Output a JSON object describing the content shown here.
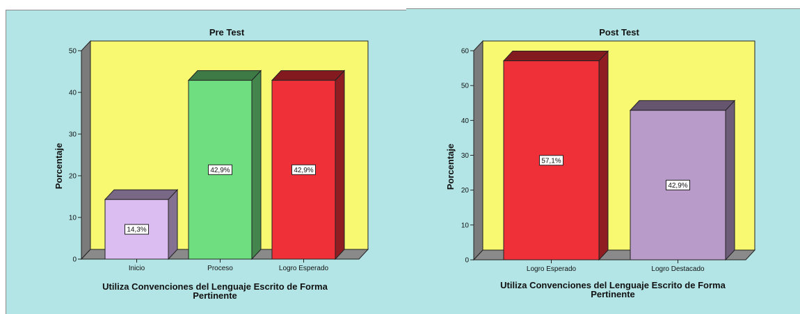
{
  "chart_data": [
    {
      "type": "bar",
      "title": "Pre Test",
      "ylabel": "Porcentaje",
      "xlabel_lines": [
        "Utiliza Convenciones del Lenguaje Escrito de Forma",
        "Pertinente"
      ],
      "categories": [
        "Inicio",
        "Proceso",
        "Logro Esperado"
      ],
      "values": [
        14.3,
        42.9,
        42.9
      ],
      "labels": [
        "14,3%",
        "42,9%",
        "42,9%"
      ],
      "colors": [
        "#dcbdf1",
        "#6fde80",
        "#ef3038"
      ],
      "ylim": [
        0,
        50
      ],
      "yticks": [
        0,
        10,
        20,
        30,
        40,
        50
      ],
      "plot_background": "#f8f871"
    },
    {
      "type": "bar",
      "title": "Post Test",
      "ylabel": "Porcentaje",
      "xlabel_lines": [
        "Utiliza Convenciones del Lenguaje Escrito de Forma",
        "Pertinente"
      ],
      "categories": [
        "Logro Esperado",
        "Logro Destacado"
      ],
      "values": [
        57.1,
        42.9
      ],
      "labels": [
        "57,1%",
        "42,9%"
      ],
      "colors": [
        "#ef3038",
        "#b89bc9"
      ],
      "ylim": [
        0,
        60
      ],
      "yticks": [
        0,
        10,
        20,
        30,
        40,
        50,
        60
      ],
      "plot_background": "#f8f871"
    }
  ]
}
